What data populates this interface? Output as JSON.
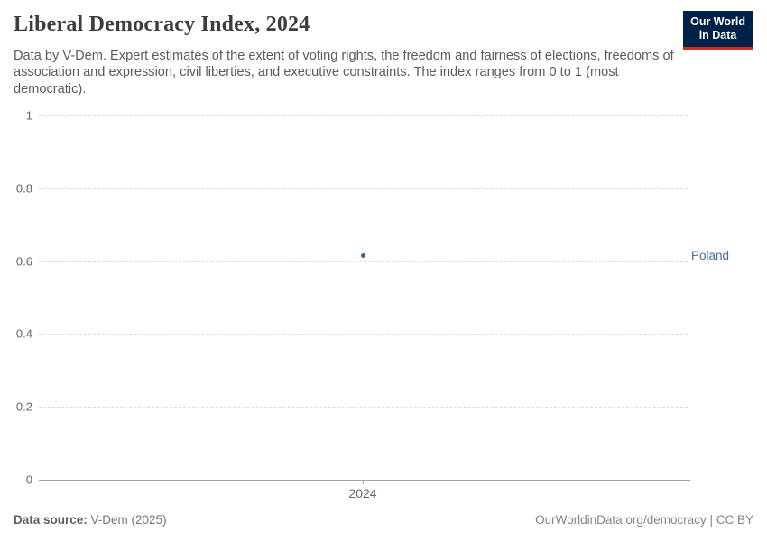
{
  "header": {
    "title": "Liberal Democracy Index, 2024",
    "subtitle": "Data by V-Dem. Expert estimates of the extent of voting rights, the freedom and fairness of elections, freedoms of association and expression, civil liberties, and executive constraints. The index ranges from 0 to 1 (most democratic).",
    "logo": {
      "line1": "Our World",
      "line2": "in Data"
    }
  },
  "chart_data": {
    "type": "scatter",
    "title": "Liberal Democracy Index, 2024",
    "series": [
      {
        "name": "Poland",
        "points": [
          {
            "x": 2024,
            "y": 0.61
          }
        ]
      }
    ],
    "xlabel": "",
    "ylabel": "",
    "ylim": [
      0,
      1
    ],
    "yticks": [
      0,
      0.2,
      0.4,
      0.6,
      0.8,
      1
    ],
    "ytick_labels_top_to_bottom": [
      "1",
      "0.8",
      "0.6",
      "0.4",
      "0.2",
      "0"
    ],
    "xtick_labels": [
      "2024"
    ],
    "grid": "horizontal-dashed",
    "legend": "entity-label-right-of-plot"
  },
  "footer": {
    "source_label": "Data source:",
    "source_value": " V-Dem (2025)",
    "right_link": "OurWorldinData.org/democracy",
    "right_suffix": " | CC BY"
  },
  "colors": {
    "series_blue": "#4c6a9c",
    "dot_blue": "#3d62a5",
    "logo_background": "#002147",
    "logo_stripe": "#d42b21",
    "gridline": "#dcdcdc",
    "axis": "#a3a3a3"
  }
}
